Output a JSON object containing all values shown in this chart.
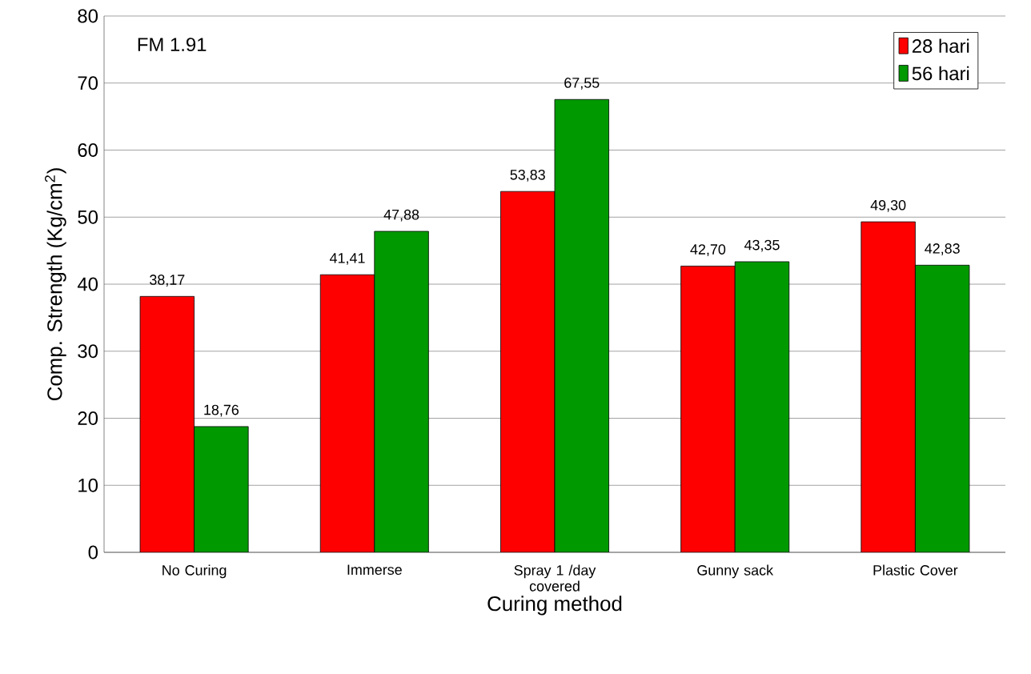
{
  "chart_data": {
    "type": "bar",
    "xlabel": "Curing method",
    "ylabel": "Comp. Strength (Kg/cm$^{2}$)",
    "categories": [
      "No Curing",
      "Immerse",
      "Spray 1 /day covered",
      "Gunny sack",
      "Plastic Cover"
    ],
    "series": [
      {
        "name": "28 hari",
        "color": "#ff0000",
        "values": [
          38.17,
          41.41,
          53.83,
          42.7,
          49.3
        ],
        "value_labels": [
          "38,17",
          "41,41",
          "53,83",
          "42,70",
          "49,30"
        ]
      },
      {
        "name": "56 hari",
        "color": "#009900",
        "values": [
          18.76,
          47.88,
          67.55,
          43.35,
          42.83
        ],
        "value_labels": [
          "18,76",
          "47,88",
          "67,55",
          "43,35",
          "42,83"
        ]
      }
    ],
    "ylim": [
      0,
      80
    ],
    "yticks": [
      0,
      10,
      20,
      30,
      40,
      50,
      60,
      70,
      80
    ],
    "grid": "y",
    "legend": "top right",
    "annotations": [
      "FM 1.91"
    ]
  }
}
